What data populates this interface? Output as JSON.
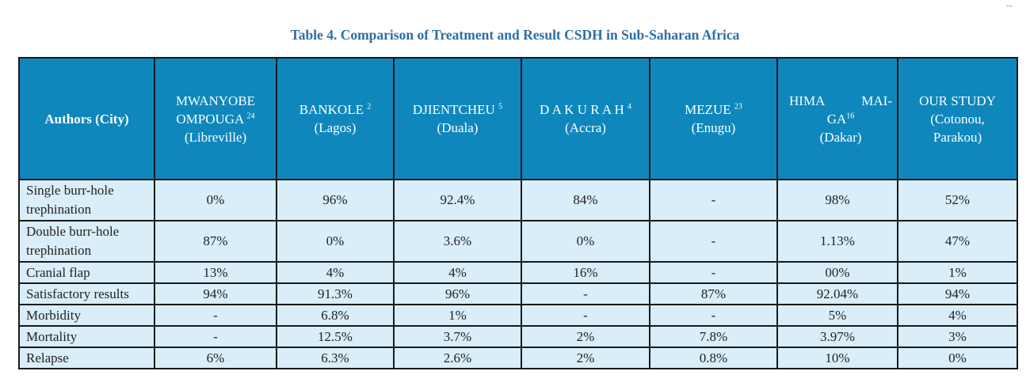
{
  "page": {
    "corner_mark": "..."
  },
  "title": "Table 4. Comparison of Treatment and Result CSDH in Sub-Saharan Africa",
  "headers": {
    "first": "Authors (City)",
    "mwanyobe": {
      "line1": "MWANYOBE",
      "line2": "OMPOUGA",
      "ref": "24",
      "city": "(Libreville)"
    },
    "bankole": {
      "name": "BANKOLE",
      "ref": "2",
      "city": "(Lagos)"
    },
    "djientcheu": {
      "name": "DJIENTCHEU",
      "ref": "5",
      "city": "(Duala)"
    },
    "dakurah": {
      "name": "D A K U R A H",
      "ref": "4",
      "city": "(Accra)"
    },
    "mezue": {
      "name": "MEZUE",
      "ref": "23",
      "city": "(Enugu)"
    },
    "hima": {
      "line1": "HIMA      MAI-",
      "line2": "GA",
      "ref": "16",
      "city": "(Dakar)"
    },
    "ours": {
      "line1": "OUR STUDY",
      "line2": "(Cotonou,",
      "line3": "Parakou)"
    }
  },
  "rows": [
    {
      "label": "Single burr-hole trephination",
      "values": [
        "0%",
        "96%",
        "92.4%",
        "84%",
        "-",
        "98%",
        "52%"
      ]
    },
    {
      "label": "Double burr-hole trephination",
      "values": [
        "87%",
        "0%",
        "3.6%",
        "0%",
        "-",
        "1.13%",
        "47%"
      ]
    },
    {
      "label": "Cranial flap",
      "values": [
        "13%",
        "4%",
        "4%",
        "16%",
        "-",
        "00%",
        "1%"
      ]
    },
    {
      "label": "Satisfactory results",
      "values": [
        "94%",
        "91.3%",
        "96%",
        "-",
        "87%",
        "92.04%",
        "94%"
      ]
    },
    {
      "label": "Morbidity",
      "values": [
        "-",
        "6.8%",
        "1%",
        "-",
        "-",
        "5%",
        "4%"
      ]
    },
    {
      "label": "Mortality",
      "values": [
        "-",
        "12.5%",
        "3.7%",
        "2%",
        "7.8%",
        "3.97%",
        "3%"
      ]
    },
    {
      "label": "Relapse",
      "values": [
        "6%",
        "6.3%",
        "2.6%",
        "2%",
        "0.8%",
        "10%",
        "0%"
      ]
    }
  ]
}
